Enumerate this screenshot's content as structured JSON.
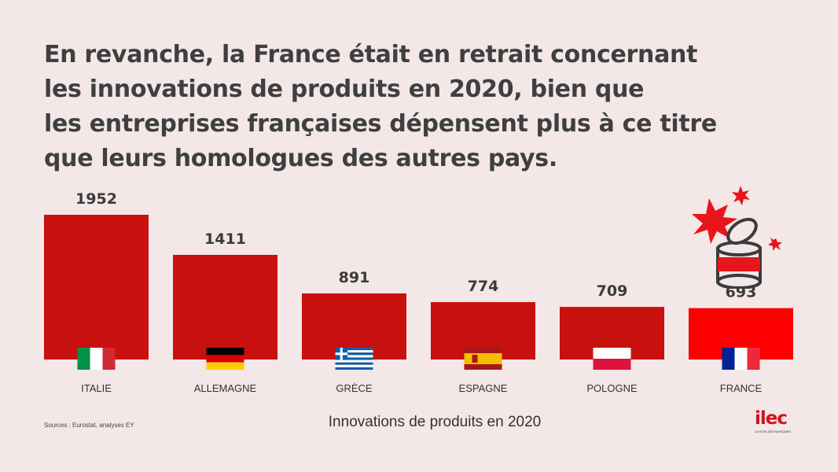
{
  "headline": {
    "lines": [
      "En revanche, la France était en retrait concernant",
      "les innovations de produits en 2020, bien que",
      "les entreprises françaises dépensent plus à ce titre",
      "que leurs homologues des autres pays."
    ]
  },
  "chart_data": {
    "type": "bar",
    "categories": [
      "ITALIE",
      "ALLEMAGNE",
      "GRÈCE",
      "ESPAGNE",
      "POLOGNE",
      "FRANCE"
    ],
    "values": [
      1952,
      1411,
      891,
      774,
      709,
      693
    ],
    "xlabel": "Innovations de produits en 2020",
    "ylabel": "",
    "ylim": [
      0,
      1952
    ],
    "grid": false,
    "colors": {
      "bar": "#c8100f",
      "highlight": "#fe0000",
      "background": "#f3e7e7"
    },
    "highlighted_category": "FRANCE",
    "flags": [
      "italy-flag-icon",
      "germany-flag-icon",
      "greece-flag-icon",
      "spain-flag-icon",
      "poland-flag-icon",
      "france-flag-icon"
    ]
  },
  "footer": {
    "source": "Sources : Eurostat, analyses EY",
    "logo_word": "ilec",
    "logo_tagline": "LA VOIX DES MARQUES"
  },
  "decoration": {
    "icon": "bursting-can-icon"
  }
}
